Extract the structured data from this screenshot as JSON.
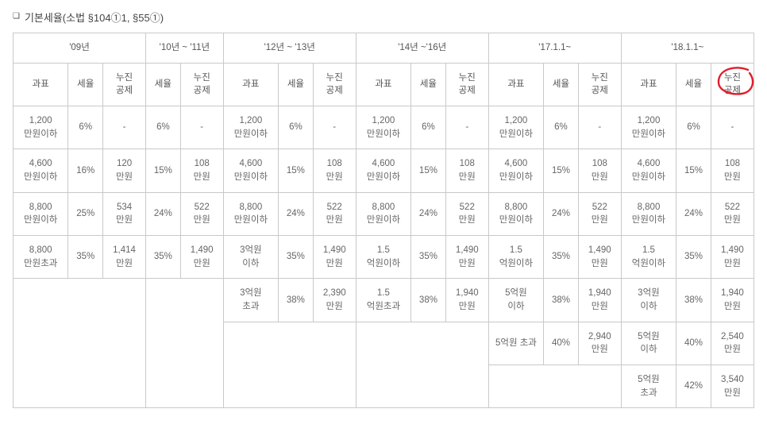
{
  "title": "기본세율(소법 §104①1, §55①)",
  "periods": [
    "'09년",
    "'10년 ~ '11년",
    "'12년 ~ '13년",
    "'14년 ~'16년",
    "'17.1.1~",
    "'18.1.1~"
  ],
  "headers": {
    "bracket": "과표",
    "rate": "세율",
    "deduction": "누진\n공제"
  },
  "circle_color": "#e11d2a",
  "rows": [
    {
      "p0": {
        "b": "1,200\n만원이하",
        "r": "6%",
        "d": "-"
      },
      "p1": {
        "r": "6%",
        "d": "-"
      },
      "p2": {
        "b": "1,200\n만원이하",
        "r": "6%",
        "d": "-"
      },
      "p3": {
        "b": "1,200\n만원이하",
        "r": "6%",
        "d": "-"
      },
      "p4": {
        "b": "1,200\n만원이하",
        "r": "6%",
        "d": "-"
      },
      "p5": {
        "b": "1,200\n만원이하",
        "r": "6%",
        "d": "-"
      }
    },
    {
      "p0": {
        "b": "4,600\n만원이하",
        "r": "16%",
        "d": "120\n만원"
      },
      "p1": {
        "r": "15%",
        "d": "108\n만원"
      },
      "p2": {
        "b": "4,600\n만원이하",
        "r": "15%",
        "d": "108\n만원"
      },
      "p3": {
        "b": "4,600\n만원이하",
        "r": "15%",
        "d": "108\n만원"
      },
      "p4": {
        "b": "4,600\n만원이하",
        "r": "15%",
        "d": "108\n만원"
      },
      "p5": {
        "b": "4,600\n만원이하",
        "r": "15%",
        "d": "108\n만원"
      }
    },
    {
      "p0": {
        "b": "8,800\n만원이하",
        "r": "25%",
        "d": "534\n만원"
      },
      "p1": {
        "r": "24%",
        "d": "522\n만원"
      },
      "p2": {
        "b": "8,800\n만원이하",
        "r": "24%",
        "d": "522\n만원"
      },
      "p3": {
        "b": "8,800\n만원이하",
        "r": "24%",
        "d": "522\n만원"
      },
      "p4": {
        "b": "8,800\n만원이하",
        "r": "24%",
        "d": "522\n만원"
      },
      "p5": {
        "b": "8,800\n만원이하",
        "r": "24%",
        "d": "522\n만원"
      }
    },
    {
      "p0": {
        "b": "8,800\n만원초과",
        "r": "35%",
        "d": "1,414\n만원"
      },
      "p1": {
        "r": "35%",
        "d": "1,490\n만원"
      },
      "p2": {
        "b": "3억원\n이하",
        "r": "35%",
        "d": "1,490\n만원"
      },
      "p3": {
        "b": "1.5\n억원이하",
        "r": "35%",
        "d": "1,490\n만원"
      },
      "p4": {
        "b": "1.5\n억원이하",
        "r": "35%",
        "d": "1,490\n만원"
      },
      "p5": {
        "b": "1.5\n억원이하",
        "r": "35%",
        "d": "1,490\n만원"
      }
    },
    {
      "p0": null,
      "p1": null,
      "p2": {
        "b": "3억원\n초과",
        "r": "38%",
        "d": "2,390\n만원"
      },
      "p3": {
        "b": "1.5\n억원초과",
        "r": "38%",
        "d": "1,940\n만원"
      },
      "p4": {
        "b": "5억원\n이하",
        "r": "38%",
        "d": "1,940\n만원"
      },
      "p5": {
        "b": "3억원\n이하",
        "r": "38%",
        "d": "1,940\n만원"
      }
    },
    {
      "p0": null,
      "p1": null,
      "p2": null,
      "p3": null,
      "p4": {
        "b": "5억원 초과",
        "r": "40%",
        "d": "2,940\n만원"
      },
      "p5": {
        "b": "5억원\n이하",
        "r": "40%",
        "d": "2,540\n만원"
      }
    },
    {
      "p0": null,
      "p1": null,
      "p2": null,
      "p3": null,
      "p4": null,
      "p5": {
        "b": "5억원\n초과",
        "r": "42%",
        "d": "3,540\n만원"
      }
    }
  ]
}
